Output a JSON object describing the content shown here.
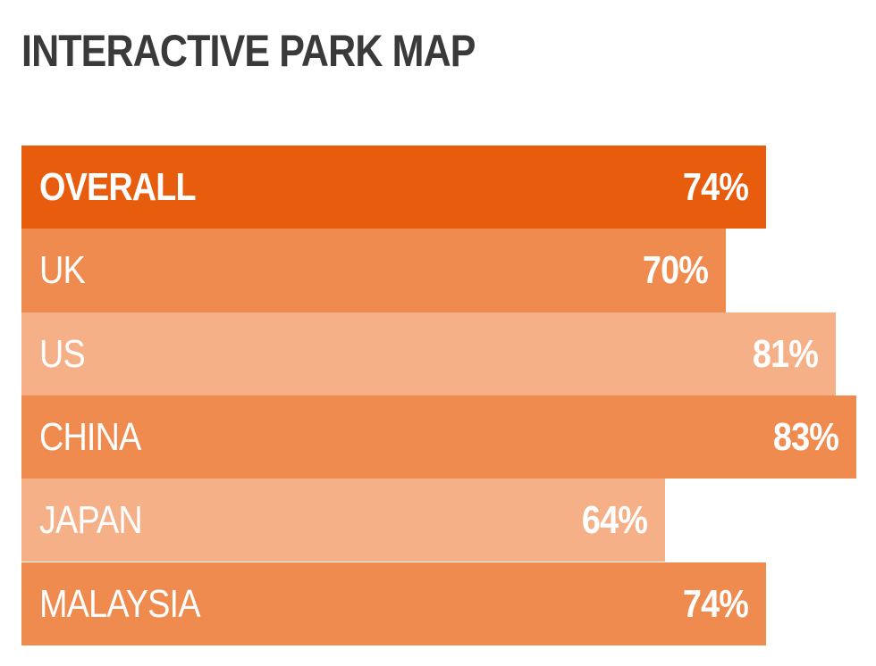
{
  "title": "INTERACTIVE PARK MAP",
  "colors": {
    "overall": "#e85c0d",
    "medium": "#ef8b4f",
    "light": "#f5b088",
    "text": "#ffffff",
    "title": "#3a3a3a"
  },
  "chart_data": {
    "type": "bar",
    "orientation": "horizontal",
    "title": "INTERACTIVE PARK MAP",
    "categories": [
      "OVERALL",
      "UK",
      "US",
      "CHINA",
      "JAPAN",
      "MALAYSIA"
    ],
    "values": [
      74,
      70,
      81,
      83,
      64,
      74
    ],
    "value_labels": [
      "74%",
      "70%",
      "81%",
      "83%",
      "64%",
      "74%"
    ],
    "bar_colors": [
      "#e85c0d",
      "#ef8b4f",
      "#f5b088",
      "#ef8b4f",
      "#f5b088",
      "#ef8b4f"
    ],
    "xlim": [
      0,
      83
    ],
    "grid": false,
    "legend": "none"
  }
}
